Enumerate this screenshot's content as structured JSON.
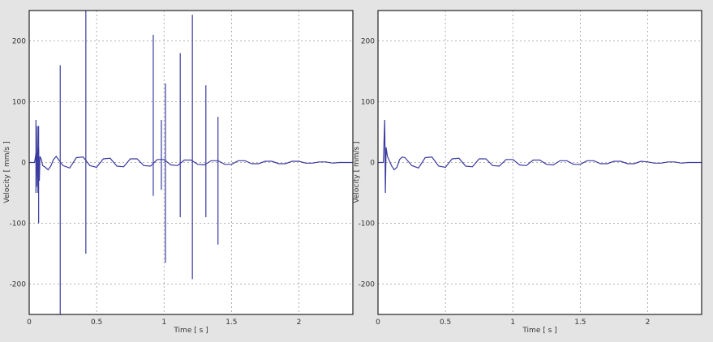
{
  "chart_data": [
    {
      "type": "line",
      "title": "",
      "xlabel": "Time [ s ]",
      "ylabel": "Velocity [ mm/s ]",
      "xlim": [
        0,
        2.4
      ],
      "ylim": [
        -250,
        250
      ],
      "xticks": [
        0,
        0.5,
        1,
        1.5,
        2
      ],
      "xtick_labels": [
        "0",
        "0.5",
        "1",
        "1.5",
        "2"
      ],
      "yticks": [
        200,
        100,
        0,
        -100,
        -200
      ],
      "ytick_labels": [
        "200",
        "100",
        "0",
        "-100",
        "-200"
      ],
      "grid": true,
      "line_color": "#3a3aa0",
      "series": [
        {
          "values_description_free": true,
          "x": [
            0.0,
            0.04,
            0.05,
            0.055,
            0.06,
            0.065,
            0.07,
            0.075,
            0.08,
            0.09,
            0.1,
            0.12,
            0.14,
            0.16,
            0.18,
            0.2,
            0.25,
            0.3,
            0.35,
            0.4,
            0.45,
            0.5,
            0.55,
            0.6,
            0.65,
            0.7,
            0.75,
            0.8,
            0.85,
            0.9,
            0.95,
            1.0,
            1.05,
            1.1,
            1.15,
            1.2,
            1.25,
            1.3,
            1.35,
            1.4,
            1.45,
            1.5,
            1.55,
            1.6,
            1.65,
            1.7,
            1.75,
            1.8,
            1.85,
            1.9,
            1.95,
            2.0,
            2.05,
            2.1,
            2.15,
            2.2,
            2.25,
            2.3,
            2.35,
            2.4
          ],
          "y": [
            0,
            0,
            15,
            -40,
            60,
            -50,
            25,
            -30,
            10,
            5,
            -5,
            -8,
            -12,
            -6,
            5,
            10,
            -5,
            -9,
            8,
            9,
            -5,
            -8,
            6,
            7,
            -6,
            -7,
            6,
            6,
            -5,
            -6,
            5,
            5,
            -4,
            -5,
            4,
            4,
            -3,
            -4,
            3,
            3,
            -3,
            -3,
            3,
            3,
            -2,
            -2,
            2,
            2,
            -2,
            -2,
            2,
            2,
            -1,
            -1,
            1,
            1,
            -1,
            0,
            0,
            0
          ]
        }
      ],
      "spikes": [
        {
          "x": 0.05,
          "ymax": 70,
          "ymin": -50
        },
        {
          "x": 0.07,
          "ymax": 60,
          "ymin": -100
        },
        {
          "x": 0.23,
          "ymax": 160,
          "ymin": -250
        },
        {
          "x": 0.42,
          "ymax": 250,
          "ymin": -150
        },
        {
          "x": 0.92,
          "ymax": 210,
          "ymin": -55
        },
        {
          "x": 0.98,
          "ymax": 70,
          "ymin": -45
        },
        {
          "x": 1.01,
          "ymax": 130,
          "ymin": -165
        },
        {
          "x": 1.12,
          "ymax": 180,
          "ymin": -90
        },
        {
          "x": 1.21,
          "ymax": 243,
          "ymin": -192
        },
        {
          "x": 1.31,
          "ymax": 127,
          "ymin": -90
        },
        {
          "x": 1.4,
          "ymax": 75,
          "ymin": -135
        }
      ]
    },
    {
      "type": "line",
      "title": "",
      "xlabel": "Time [ s ]",
      "ylabel": "Velocity [ mm/s ]",
      "xlim": [
        0,
        2.4
      ],
      "ylim": [
        -250,
        250
      ],
      "xticks": [
        0,
        0.5,
        1,
        1.5,
        2
      ],
      "xtick_labels": [
        "0",
        "0.5",
        "1",
        "1.5",
        "2"
      ],
      "yticks": [
        200,
        100,
        0,
        -100,
        -200
      ],
      "ytick_labels": [
        "200",
        "100",
        "0",
        "-100",
        "-200"
      ],
      "grid": true,
      "line_color": "#3a3aa0",
      "series": [
        {
          "x": [
            0.0,
            0.04,
            0.05,
            0.055,
            0.06,
            0.07,
            0.08,
            0.1,
            0.12,
            0.14,
            0.16,
            0.18,
            0.2,
            0.25,
            0.3,
            0.35,
            0.4,
            0.45,
            0.5,
            0.55,
            0.6,
            0.65,
            0.7,
            0.75,
            0.8,
            0.85,
            0.9,
            0.95,
            1.0,
            1.05,
            1.1,
            1.15,
            1.2,
            1.25,
            1.3,
            1.35,
            1.4,
            1.45,
            1.5,
            1.55,
            1.6,
            1.65,
            1.7,
            1.75,
            1.8,
            1.85,
            1.9,
            1.95,
            2.0,
            2.05,
            2.1,
            2.15,
            2.2,
            2.25,
            2.3,
            2.35,
            2.4
          ],
          "y": [
            0,
            0,
            70,
            -50,
            25,
            10,
            5,
            -5,
            -12,
            -8,
            5,
            9,
            8,
            -5,
            -9,
            8,
            9,
            -6,
            -8,
            6,
            7,
            -6,
            -7,
            6,
            6,
            -5,
            -6,
            5,
            5,
            -4,
            -5,
            4,
            4,
            -3,
            -4,
            3,
            3,
            -3,
            -3,
            3,
            3,
            -2,
            -2,
            2,
            2,
            -2,
            -2,
            2,
            1,
            -1,
            -1,
            1,
            1,
            -1,
            0,
            0,
            0
          ]
        }
      ],
      "spikes": []
    }
  ]
}
